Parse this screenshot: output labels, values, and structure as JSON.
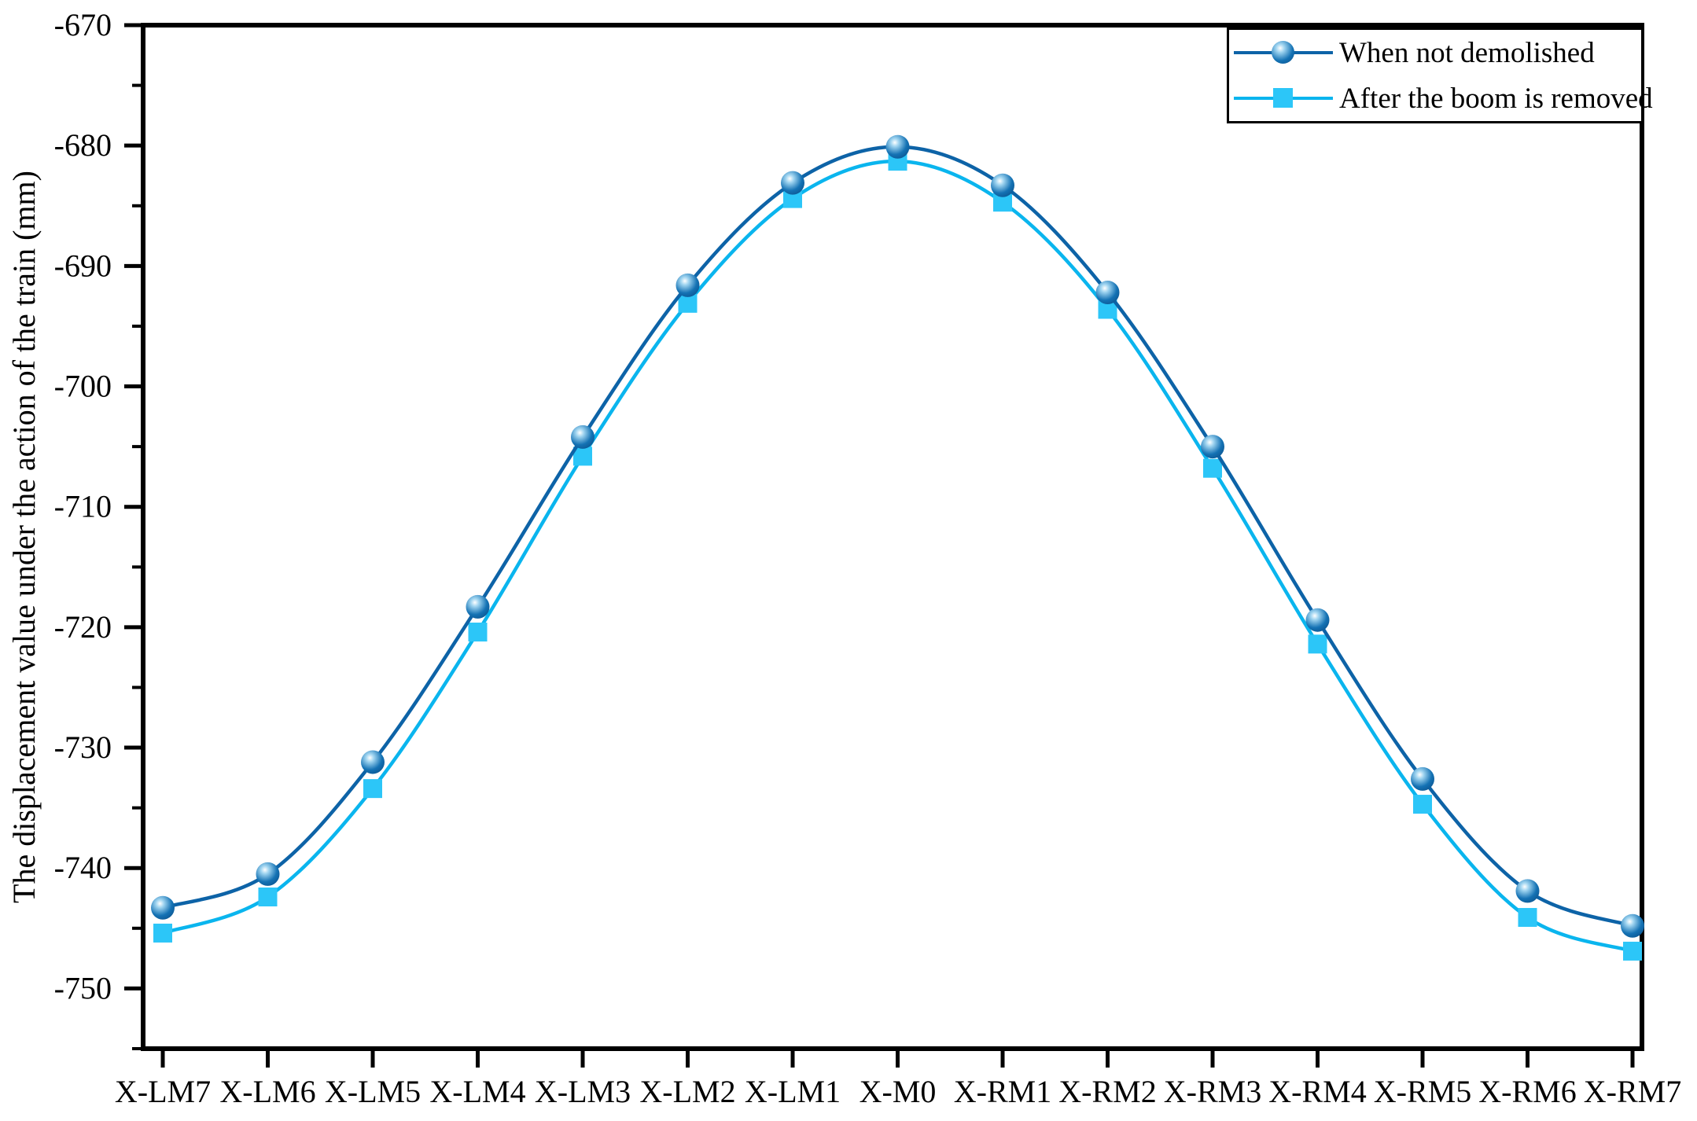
{
  "figure": {
    "background": "#ffffff",
    "frame_color": "#000000"
  },
  "legend": {
    "position": "top-right",
    "items": [
      {
        "label": "When not demolished",
        "marker": "sphere",
        "line_color": "#0d63a7"
      },
      {
        "label": "After the boom is removed",
        "marker": "square",
        "line_color": "#0ab5ee"
      }
    ]
  },
  "chart_data": {
    "type": "line",
    "title": "",
    "xlabel": "",
    "ylabel": "The displacement value under the action of the train (mm)",
    "categories": [
      "X-LM7",
      "X-LM6",
      "X-LM5",
      "X-LM4",
      "X-LM3",
      "X-LM2",
      "X-LM1",
      "X-M0",
      "X-RM1",
      "X-RM2",
      "X-RM3",
      "X-RM4",
      "X-RM5",
      "X-RM6",
      "X-RM7"
    ],
    "series": [
      {
        "name": "When not demolished",
        "line_color": "#0d63a7",
        "marker": "sphere",
        "marker_gradient": [
          "#ffffff",
          "#9fd4f0",
          "#1472b4",
          "#0a4d86"
        ],
        "values": [
          -743.3,
          -740.5,
          -731.2,
          -718.3,
          -704.2,
          -691.6,
          -683.1,
          -680.1,
          -683.3,
          -692.2,
          -705.0,
          -719.4,
          -732.6,
          -741.9,
          -744.8
        ]
      },
      {
        "name": "After the boom is removed",
        "line_color": "#0ab5ee",
        "marker": "square",
        "marker_color": "#2cc6f8",
        "values": [
          -745.4,
          -742.4,
          -733.4,
          -720.4,
          -705.8,
          -693.1,
          -684.4,
          -681.3,
          -684.7,
          -693.6,
          -706.8,
          -721.4,
          -734.7,
          -744.1,
          -746.9
        ]
      }
    ],
    "ylim": [
      -755,
      -670
    ],
    "y_major_ticks": [
      -670,
      -680,
      -690,
      -700,
      -710,
      -720,
      -730,
      -740,
      -750
    ],
    "y_minor_ticks": [
      -675,
      -685,
      -695,
      -705,
      -715,
      -725,
      -735,
      -745,
      -755
    ],
    "grid": false,
    "smooth": true,
    "legend_position": "top-right",
    "axis_color": "#000000"
  }
}
